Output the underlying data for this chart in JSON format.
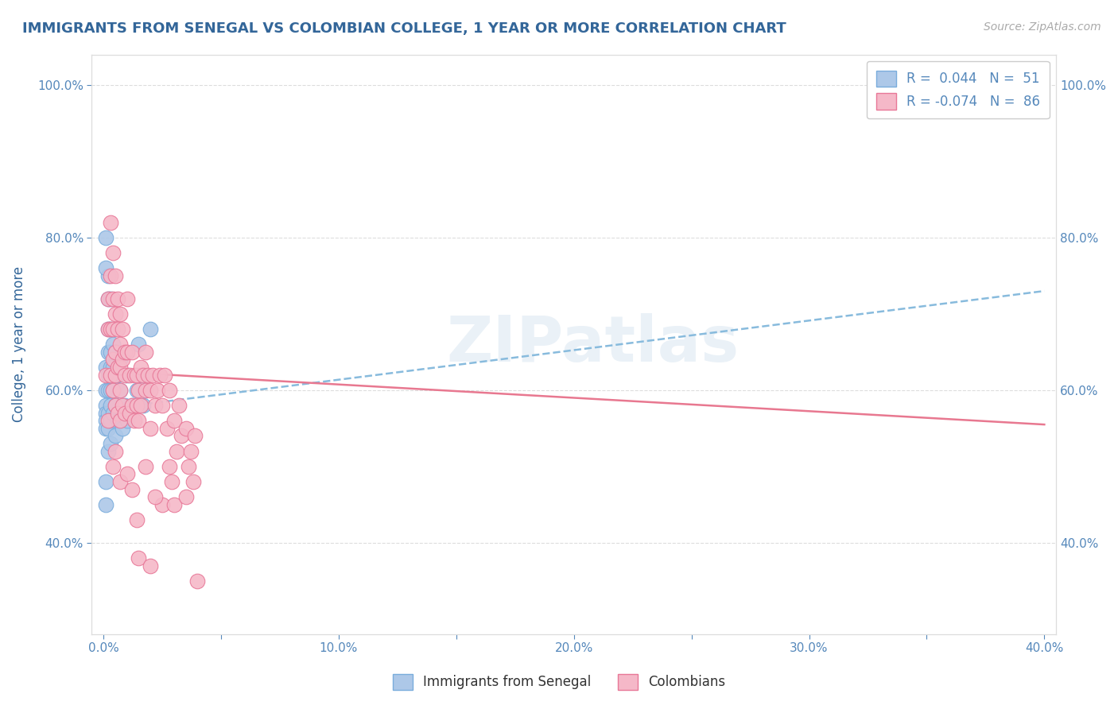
{
  "title": "IMMIGRANTS FROM SENEGAL VS COLOMBIAN COLLEGE, 1 YEAR OR MORE CORRELATION CHART",
  "source_text": "Source: ZipAtlas.com",
  "ylabel": "College, 1 year or more",
  "xlim": [
    -0.005,
    0.405
  ],
  "ylim": [
    0.28,
    1.04
  ],
  "xticks": [
    0.0,
    0.05,
    0.1,
    0.15,
    0.2,
    0.25,
    0.3,
    0.35,
    0.4
  ],
  "xtick_labels_show": [
    0.0,
    0.1,
    0.2,
    0.3,
    0.4
  ],
  "xtick_labels": [
    "0.0%",
    "",
    "10.0%",
    "",
    "20.0%",
    "",
    "30.0%",
    "",
    "40.0%"
  ],
  "yticks": [
    0.4,
    0.6,
    0.8,
    1.0
  ],
  "ytick_labels": [
    "40.0%",
    "60.0%",
    "80.0%",
    "100.0%"
  ],
  "legend_r1": "R =  0.044",
  "legend_n1": "N =  51",
  "legend_r2": "R = -0.074",
  "legend_n2": "N =  86",
  "senegal_color": "#adc8e8",
  "colombian_color": "#f5b8c8",
  "senegal_edge": "#7aaddc",
  "colombian_edge": "#e87898",
  "trend_senegal_color": "#88bbdd",
  "trend_colombian_color": "#e87890",
  "bg_color": "#ffffff",
  "grid_color": "#dddddd",
  "title_color": "#336699",
  "label_color": "#336699",
  "tick_color": "#5588bb",
  "watermark": "ZIPatlas",
  "senegal_points_x": [
    0.001,
    0.001,
    0.001,
    0.001,
    0.001,
    0.001,
    0.002,
    0.002,
    0.002,
    0.002,
    0.002,
    0.002,
    0.002,
    0.002,
    0.002,
    0.003,
    0.003,
    0.003,
    0.003,
    0.003,
    0.003,
    0.003,
    0.003,
    0.004,
    0.004,
    0.004,
    0.004,
    0.005,
    0.005,
    0.005,
    0.005,
    0.006,
    0.006,
    0.007,
    0.007,
    0.007,
    0.008,
    0.009,
    0.01,
    0.01,
    0.012,
    0.014,
    0.015,
    0.016,
    0.017,
    0.018,
    0.02,
    0.001,
    0.001,
    0.001,
    0.001
  ],
  "senegal_points_y": [
    0.63,
    0.6,
    0.58,
    0.57,
    0.56,
    0.55,
    0.75,
    0.72,
    0.68,
    0.65,
    0.62,
    0.6,
    0.57,
    0.55,
    0.52,
    0.72,
    0.68,
    0.65,
    0.63,
    0.6,
    0.58,
    0.56,
    0.53,
    0.66,
    0.63,
    0.6,
    0.57,
    0.65,
    0.62,
    0.58,
    0.54,
    0.62,
    0.56,
    0.64,
    0.6,
    0.56,
    0.55,
    0.58,
    0.62,
    0.56,
    0.58,
    0.6,
    0.66,
    0.62,
    0.58,
    0.6,
    0.68,
    0.48,
    0.45,
    0.8,
    0.76
  ],
  "colombian_points_x": [
    0.001,
    0.002,
    0.002,
    0.002,
    0.003,
    0.003,
    0.003,
    0.003,
    0.004,
    0.004,
    0.004,
    0.004,
    0.004,
    0.004,
    0.005,
    0.005,
    0.005,
    0.005,
    0.005,
    0.005,
    0.006,
    0.006,
    0.006,
    0.006,
    0.007,
    0.007,
    0.007,
    0.007,
    0.007,
    0.007,
    0.008,
    0.008,
    0.008,
    0.009,
    0.009,
    0.009,
    0.01,
    0.01,
    0.011,
    0.011,
    0.012,
    0.012,
    0.013,
    0.013,
    0.014,
    0.014,
    0.015,
    0.015,
    0.016,
    0.016,
    0.017,
    0.018,
    0.018,
    0.019,
    0.02,
    0.02,
    0.021,
    0.022,
    0.023,
    0.024,
    0.025,
    0.026,
    0.027,
    0.028,
    0.029,
    0.03,
    0.031,
    0.032,
    0.033,
    0.035,
    0.036,
    0.037,
    0.038,
    0.039,
    0.04,
    0.025,
    0.015,
    0.02,
    0.03,
    0.035,
    0.01,
    0.012,
    0.014,
    0.018,
    0.022,
    0.028
  ],
  "colombian_points_y": [
    0.62,
    0.72,
    0.68,
    0.56,
    0.82,
    0.75,
    0.68,
    0.62,
    0.78,
    0.72,
    0.68,
    0.64,
    0.6,
    0.5,
    0.75,
    0.7,
    0.65,
    0.62,
    0.58,
    0.52,
    0.72,
    0.68,
    0.63,
    0.57,
    0.7,
    0.66,
    0.63,
    0.6,
    0.56,
    0.48,
    0.68,
    0.64,
    0.58,
    0.65,
    0.62,
    0.57,
    0.72,
    0.65,
    0.62,
    0.57,
    0.65,
    0.58,
    0.62,
    0.56,
    0.62,
    0.58,
    0.6,
    0.56,
    0.63,
    0.58,
    0.62,
    0.65,
    0.6,
    0.62,
    0.6,
    0.55,
    0.62,
    0.58,
    0.6,
    0.62,
    0.58,
    0.62,
    0.55,
    0.6,
    0.48,
    0.56,
    0.52,
    0.58,
    0.54,
    0.55,
    0.5,
    0.52,
    0.48,
    0.54,
    0.35,
    0.45,
    0.38,
    0.37,
    0.45,
    0.46,
    0.49,
    0.47,
    0.43,
    0.5,
    0.46,
    0.5
  ]
}
